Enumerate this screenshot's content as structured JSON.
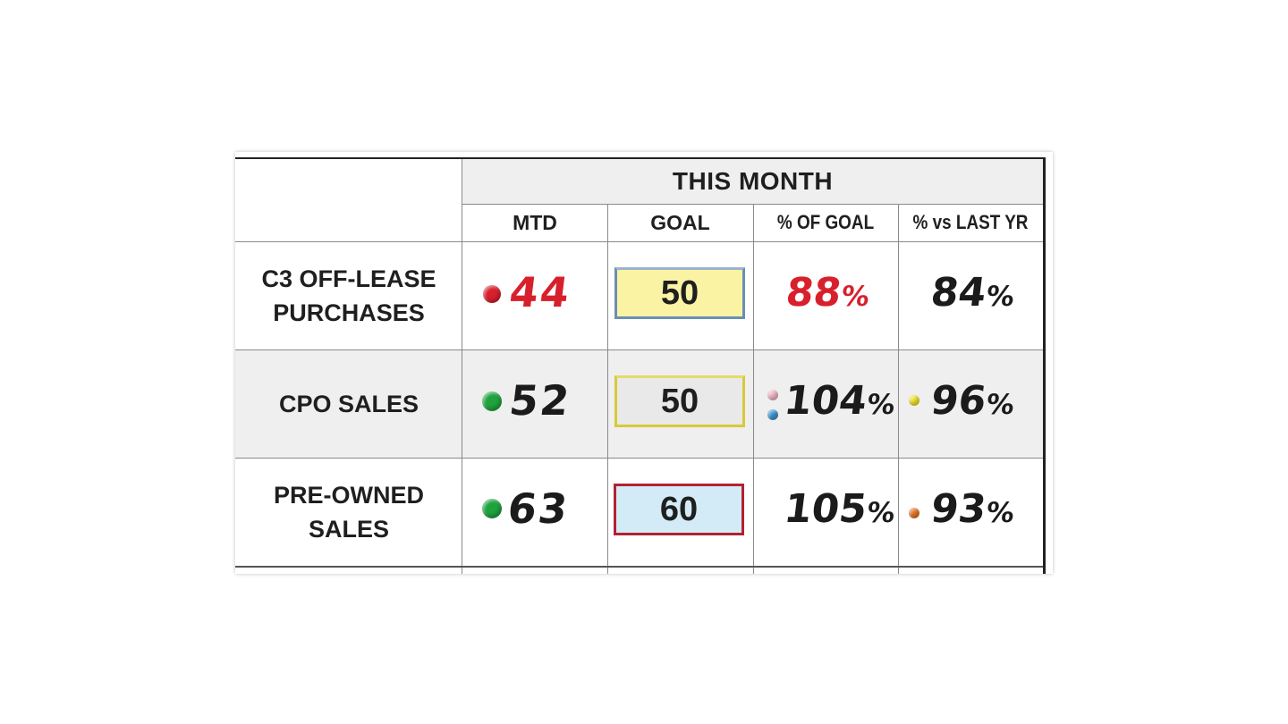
{
  "header": {
    "title": "THIS MONTH",
    "columns": [
      "MTD",
      "GOAL",
      "% OF GOAL",
      "% vs LAST YR"
    ]
  },
  "colors": {
    "red": "#d8202c",
    "green": "#1fa33e",
    "black": "#1b1b1b",
    "yellow_dot": "#f2e528",
    "pink_dot": "#f4b6c6",
    "blue_dot": "#3b97d3",
    "orange_dot": "#e8762a"
  },
  "rows": [
    {
      "label_line1": "C3 OFF-LEASE",
      "label_line2": "PURCHASES",
      "mtd": "44",
      "mtd_status": "red",
      "goal": "50",
      "goal_box_style": "yellow-fill-blue-border",
      "pct_goal": "88",
      "pct_goal_color": "red",
      "pct_last_yr": "84"
    },
    {
      "label_line1": "CPO SALES",
      "mtd": "52",
      "mtd_status": "green",
      "goal": "50",
      "goal_box_style": "gray-fill-yellow-border",
      "pct_goal": "104",
      "pct_goal_markers": [
        "pink",
        "blue"
      ],
      "pct_last_yr": "96",
      "pct_last_yr_marker": "yellow"
    },
    {
      "label_line1": "PRE-OWNED",
      "label_line2": "SALES",
      "mtd": "63",
      "mtd_status": "green",
      "goal": "60",
      "goal_box_style": "blue-fill-red-border",
      "pct_goal": "105",
      "pct_last_yr": "93",
      "pct_last_yr_marker": "orange"
    }
  ],
  "percent_sign": "%"
}
